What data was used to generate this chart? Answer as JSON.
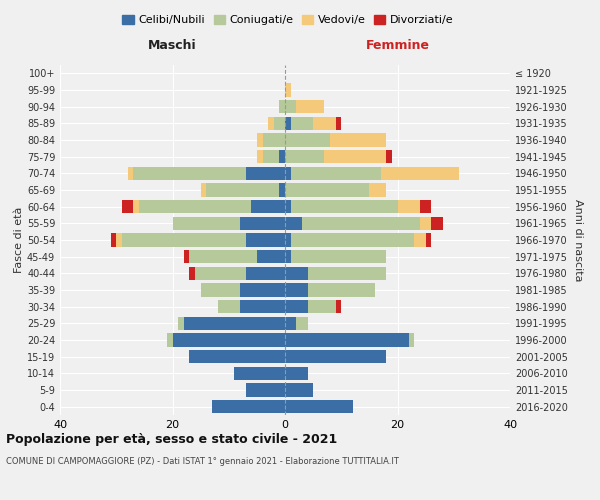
{
  "age_groups": [
    "0-4",
    "5-9",
    "10-14",
    "15-19",
    "20-24",
    "25-29",
    "30-34",
    "35-39",
    "40-44",
    "45-49",
    "50-54",
    "55-59",
    "60-64",
    "65-69",
    "70-74",
    "75-79",
    "80-84",
    "85-89",
    "90-94",
    "95-99",
    "100+"
  ],
  "birth_years": [
    "2016-2020",
    "2011-2015",
    "2006-2010",
    "2001-2005",
    "1996-2000",
    "1991-1995",
    "1986-1990",
    "1981-1985",
    "1976-1980",
    "1971-1975",
    "1966-1970",
    "1961-1965",
    "1956-1960",
    "1951-1955",
    "1946-1950",
    "1941-1945",
    "1936-1940",
    "1931-1935",
    "1926-1930",
    "1921-1925",
    "≤ 1920"
  ],
  "colors": {
    "celibe": "#3a6ea5",
    "coniugato": "#b5c99a",
    "vedovo": "#f4c97a",
    "divorziato": "#cc2222"
  },
  "maschi": {
    "celibe": [
      13,
      7,
      9,
      17,
      20,
      18,
      8,
      8,
      7,
      5,
      7,
      8,
      6,
      1,
      7,
      1,
      0,
      0,
      0,
      0,
      0
    ],
    "coniugato": [
      0,
      0,
      0,
      0,
      1,
      1,
      4,
      7,
      9,
      12,
      22,
      12,
      20,
      13,
      20,
      3,
      4,
      2,
      1,
      0,
      0
    ],
    "vedovo": [
      0,
      0,
      0,
      0,
      0,
      0,
      0,
      0,
      0,
      0,
      1,
      0,
      1,
      1,
      1,
      1,
      1,
      1,
      0,
      0,
      0
    ],
    "divorziato": [
      0,
      0,
      0,
      0,
      0,
      0,
      0,
      0,
      1,
      1,
      1,
      0,
      2,
      0,
      0,
      0,
      0,
      0,
      0,
      0,
      0
    ]
  },
  "femmine": {
    "nubile": [
      12,
      5,
      4,
      18,
      22,
      2,
      4,
      4,
      4,
      1,
      1,
      3,
      1,
      0,
      1,
      0,
      0,
      1,
      0,
      0,
      0
    ],
    "coniugata": [
      0,
      0,
      0,
      0,
      1,
      2,
      5,
      12,
      14,
      17,
      22,
      21,
      19,
      15,
      16,
      7,
      8,
      4,
      2,
      0,
      0
    ],
    "vedova": [
      0,
      0,
      0,
      0,
      0,
      0,
      0,
      0,
      0,
      0,
      2,
      2,
      4,
      3,
      14,
      11,
      10,
      4,
      5,
      1,
      0
    ],
    "divorziata": [
      0,
      0,
      0,
      0,
      0,
      0,
      1,
      0,
      0,
      0,
      1,
      2,
      2,
      0,
      0,
      1,
      0,
      1,
      0,
      0,
      0
    ]
  },
  "title1": "Popolazione per età, sesso e stato civile - 2021",
  "title2": "COMUNE DI CAMPOMAGGIORE (PZ) - Dati ISTAT 1° gennaio 2021 - Elaborazione TUTTITALIA.IT",
  "xlabel_left": "Maschi",
  "xlabel_right": "Femmine",
  "ylabel_left": "Fasce di età",
  "ylabel_right": "Anni di nascita",
  "xlim": 40,
  "legend_labels": [
    "Celibi/Nubili",
    "Coniugati/e",
    "Vedovi/e",
    "Divorziati/e"
  ],
  "bg_color": "#f0f0f0"
}
